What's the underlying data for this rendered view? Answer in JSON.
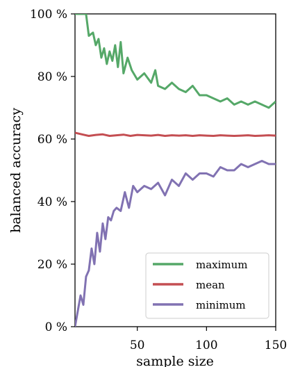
{
  "chart_data": {
    "type": "line",
    "xlabel": "sample size",
    "ylabel": "balanced accuracy",
    "xlim": [
      5,
      150
    ],
    "ylim": [
      0,
      100
    ],
    "x_ticks": [
      50,
      100,
      150
    ],
    "y_ticks": [
      {
        "value": 0,
        "label": "0 %"
      },
      {
        "value": 20,
        "label": "20 %"
      },
      {
        "value": 40,
        "label": "40 %"
      },
      {
        "value": 60,
        "label": "60 %"
      },
      {
        "value": 80,
        "label": "80 %"
      },
      {
        "value": 100,
        "label": "100 %"
      }
    ],
    "grid": false,
    "legend_position": "bottom-right",
    "series": [
      {
        "name": "maximum",
        "color": "#55a868",
        "x": [
          5,
          10,
          13,
          15,
          18,
          20,
          22,
          24,
          26,
          28,
          30,
          32,
          34,
          36,
          38,
          40,
          43,
          46,
          50,
          55,
          60,
          63,
          65,
          70,
          75,
          80,
          85,
          90,
          95,
          100,
          105,
          110,
          115,
          120,
          125,
          130,
          135,
          140,
          145,
          150
        ],
        "y": [
          100,
          100,
          100,
          93,
          94,
          90,
          92,
          86,
          89,
          84,
          88,
          85,
          90,
          83,
          91,
          81,
          86,
          82,
          79,
          81,
          78,
          82,
          77,
          76,
          78,
          76,
          75,
          77,
          74,
          74,
          73,
          72,
          73,
          71,
          72,
          71,
          72,
          71,
          70,
          72
        ]
      },
      {
        "name": "mean",
        "color": "#c44e52",
        "x": [
          5,
          10,
          15,
          20,
          25,
          30,
          35,
          40,
          45,
          50,
          55,
          60,
          65,
          70,
          75,
          80,
          85,
          90,
          95,
          100,
          105,
          110,
          115,
          120,
          125,
          130,
          135,
          140,
          145,
          150
        ],
        "y": [
          62,
          61.5,
          61,
          61.3,
          61.5,
          61,
          61.2,
          61.4,
          61,
          61.3,
          61.2,
          61.1,
          61.3,
          61,
          61.2,
          61.1,
          61.2,
          61,
          61.2,
          61.1,
          61,
          61.2,
          61.1,
          61,
          61.1,
          61.2,
          61,
          61.1,
          61.2,
          61.1
        ]
      },
      {
        "name": "minimum",
        "color": "#8172b2",
        "x": [
          5,
          9,
          11,
          13,
          15,
          17,
          19,
          21,
          23,
          25,
          27,
          29,
          31,
          33,
          35,
          38,
          41,
          44,
          47,
          50,
          55,
          60,
          65,
          70,
          75,
          80,
          85,
          90,
          95,
          100,
          105,
          110,
          115,
          120,
          125,
          130,
          135,
          140,
          145,
          150
        ],
        "y": [
          0,
          10,
          7,
          16,
          18,
          25,
          20,
          30,
          24,
          33,
          28,
          35,
          34,
          37,
          38,
          37,
          43,
          38,
          45,
          43,
          45,
          44,
          46,
          42,
          47,
          45,
          49,
          47,
          49,
          49,
          48,
          51,
          50,
          50,
          52,
          51,
          52,
          53,
          52,
          52
        ]
      }
    ]
  }
}
